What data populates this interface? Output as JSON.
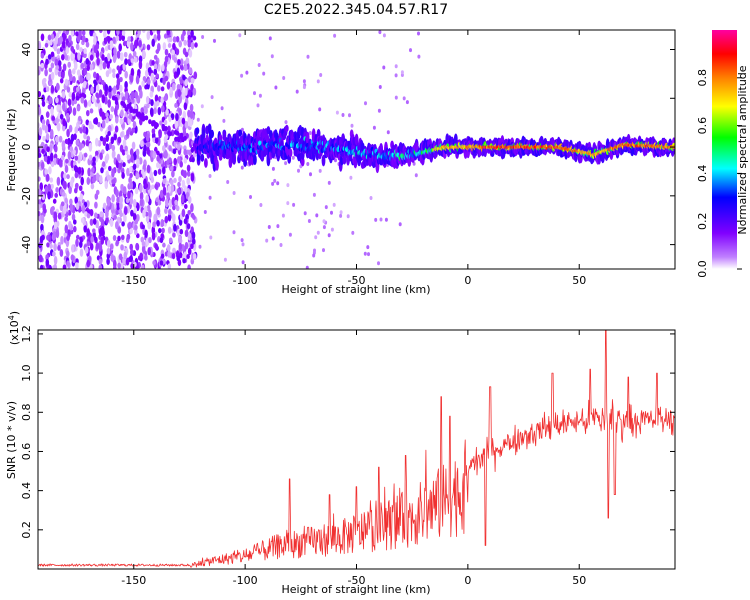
{
  "title": "C2E5.2022.345.04.57.R17",
  "chart_data": [
    {
      "type": "heatmap",
      "xlabel": "Height of straight line (km)",
      "ylabel": "Frequency (Hz)",
      "xlim": [
        -193,
        93
      ],
      "ylim": [
        -50,
        48
      ],
      "xticks": [
        -150,
        -100,
        -50,
        0,
        50
      ],
      "yticks": [
        -40,
        -20,
        0,
        20,
        40
      ],
      "colorbar": {
        "label": "Normalized spectral amplitude",
        "range": [
          0.0,
          1.0
        ],
        "ticks": [
          0.0,
          0.2,
          0.4,
          0.6,
          0.8
        ],
        "tick_labels": [
          "0.0",
          "0.2",
          "0.4",
          "0.6",
          "0.8"
        ],
        "colors": [
          "#ffffff",
          "#8000ff",
          "#0000ff",
          "#00ffff",
          "#00ff00",
          "#ffff00",
          "#ff8000",
          "#ff0000",
          "#ff00a0"
        ]
      },
      "noise_region_km": [
        -193,
        -122
      ],
      "signal_track_hz": [
        {
          "x": -122,
          "y": 0,
          "spread": 8,
          "amp": 0.35
        },
        {
          "x": -100,
          "y": 0,
          "spread": 7,
          "amp": 0.45
        },
        {
          "x": -80,
          "y": 1,
          "spread": 7,
          "amp": 0.5
        },
        {
          "x": -60,
          "y": 0,
          "spread": 6,
          "amp": 0.5
        },
        {
          "x": -40,
          "y": -4,
          "spread": 5,
          "amp": 0.55
        },
        {
          "x": -25,
          "y": -3,
          "spread": 4,
          "amp": 0.6
        },
        {
          "x": -10,
          "y": 0,
          "spread": 3,
          "amp": 0.8
        },
        {
          "x": 10,
          "y": 0,
          "spread": 2.5,
          "amp": 0.9
        },
        {
          "x": 40,
          "y": 0,
          "spread": 2.5,
          "amp": 0.9
        },
        {
          "x": 57,
          "y": -3,
          "spread": 3,
          "amp": 0.8
        },
        {
          "x": 70,
          "y": 1,
          "spread": 2.5,
          "amp": 0.9
        },
        {
          "x": 93,
          "y": 0,
          "spread": 2.5,
          "amp": 0.85
        }
      ]
    },
    {
      "type": "line",
      "xlabel": "Height of straight line (km)",
      "ylabel": "SNR (10 * v/v)",
      "scale_note": "(x10",
      "scale_exp": "4",
      "scale_close": ")",
      "color": "#f03030",
      "xlim": [
        -193,
        93
      ],
      "ylim": [
        0.0,
        1.22
      ],
      "xticks": [
        -150,
        -100,
        -50,
        0,
        50
      ],
      "yticks": [
        0.2,
        0.4,
        0.6,
        0.8,
        1.0,
        1.2
      ],
      "ytick_labels": [
        "0.2",
        "0.4",
        "0.6",
        "0.8",
        "1.0",
        "1.2"
      ],
      "baseline_envelope": [
        {
          "x": -193,
          "y": 0.02
        },
        {
          "x": -125,
          "y": 0.02
        },
        {
          "x": -115,
          "y": 0.05
        },
        {
          "x": -100,
          "y": 0.08
        },
        {
          "x": -85,
          "y": 0.14
        },
        {
          "x": -70,
          "y": 0.17
        },
        {
          "x": -55,
          "y": 0.2
        },
        {
          "x": -40,
          "y": 0.26
        },
        {
          "x": -25,
          "y": 0.32
        },
        {
          "x": -10,
          "y": 0.42
        },
        {
          "x": 0,
          "y": 0.52
        },
        {
          "x": 10,
          "y": 0.6
        },
        {
          "x": 25,
          "y": 0.68
        },
        {
          "x": 40,
          "y": 0.74
        },
        {
          "x": 55,
          "y": 0.76
        },
        {
          "x": 70,
          "y": 0.76
        },
        {
          "x": 93,
          "y": 0.76
        }
      ]
    }
  ]
}
